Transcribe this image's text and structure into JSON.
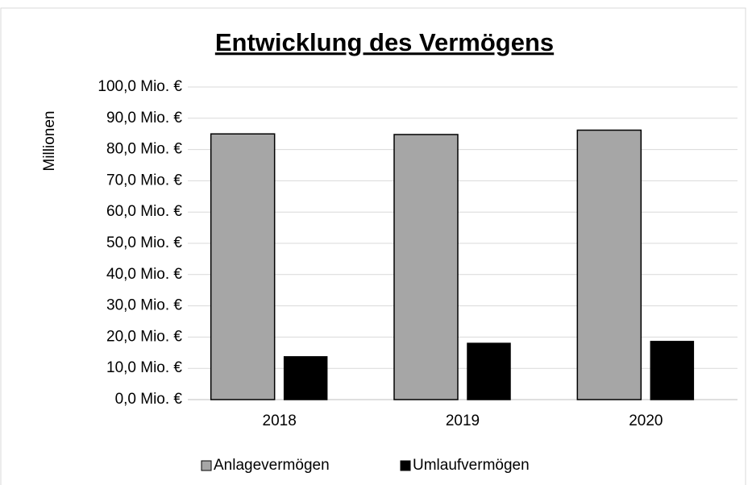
{
  "chart_data": {
    "type": "bar",
    "title": "Entwicklung des Vermögens",
    "y_label": "Millionen",
    "categories": [
      "2018",
      "2019",
      "2020"
    ],
    "series": [
      {
        "name": "Anlagevermögen",
        "color": "#a6a6a6",
        "values": [
          85,
          84.8,
          86.2
        ]
      },
      {
        "name": "Umlaufvermögen",
        "color": "#000000",
        "values": [
          13.7,
          18,
          18.6
        ]
      }
    ],
    "ylim": [
      0,
      100
    ],
    "yticks": [
      {
        "value": 0,
        "label": "0,0 Mio. €"
      },
      {
        "value": 10,
        "label": "10,0 Mio. €"
      },
      {
        "value": 20,
        "label": "20,0 Mio. €"
      },
      {
        "value": 30,
        "label": "30,0 Mio. €"
      },
      {
        "value": 40,
        "label": "40,0 Mio. €"
      },
      {
        "value": 50,
        "label": "50,0 Mio. €"
      },
      {
        "value": 60,
        "label": "60,0 Mio. €"
      },
      {
        "value": 70,
        "label": "70,0 Mio. €"
      },
      {
        "value": 80,
        "label": "80,0 Mio. €"
      },
      {
        "value": 90,
        "label": "90,0 Mio. €"
      },
      {
        "value": 100,
        "label": "100,0 Mio. €"
      }
    ],
    "grid": true,
    "legend": "bottom"
  }
}
